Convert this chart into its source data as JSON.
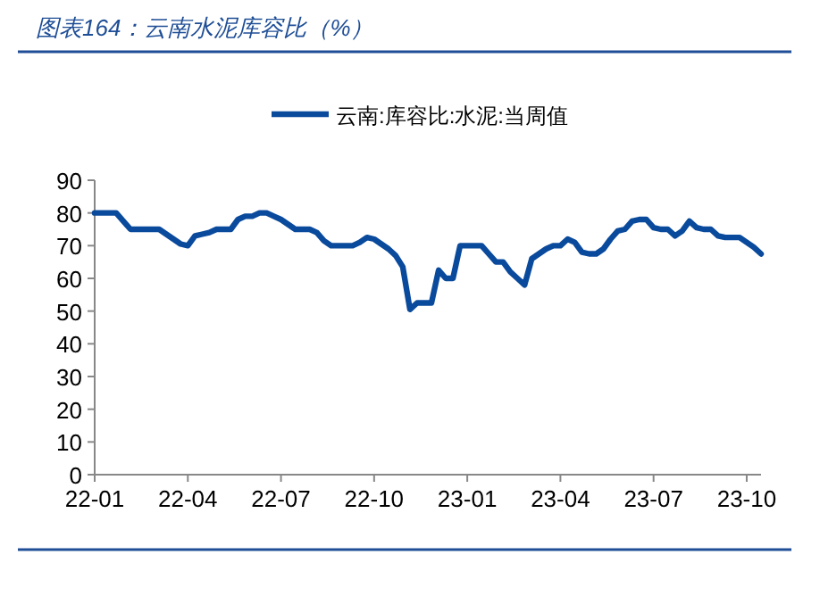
{
  "chart_data": {
    "type": "line",
    "title": "图表164：云南水泥库容比（%）",
    "categories": [
      "22-01",
      null,
      null,
      null,
      null,
      null,
      null,
      null,
      null,
      null,
      null,
      null,
      null,
      "22-04",
      null,
      null,
      null,
      null,
      null,
      null,
      null,
      null,
      null,
      null,
      null,
      null,
      "22-07",
      null,
      null,
      null,
      null,
      null,
      null,
      null,
      null,
      null,
      null,
      null,
      null,
      "22-10",
      null,
      null,
      null,
      null,
      null,
      null,
      null,
      null,
      null,
      null,
      null,
      null,
      "23-01",
      null,
      null,
      null,
      null,
      null,
      null,
      null,
      null,
      null,
      null,
      null,
      null,
      "23-04",
      null,
      null,
      null,
      null,
      null,
      null,
      null,
      null,
      null,
      null,
      null,
      null,
      "23-07",
      null,
      null,
      null,
      null,
      null,
      null,
      null,
      null,
      null,
      null,
      null,
      null,
      "23-10",
      null,
      null
    ],
    "series": [
      {
        "name": "云南:库容比:水泥:当周值",
        "color": "#0a4a9c",
        "values": [
          80,
          80,
          80,
          80,
          77.5,
          75,
          75,
          75,
          75,
          75,
          73.5,
          72,
          70.5,
          70,
          73,
          73.5,
          74,
          75,
          75,
          75,
          78,
          79,
          79,
          80,
          80,
          79,
          78,
          76.5,
          75,
          75,
          75,
          74,
          71.5,
          70,
          70,
          70,
          70,
          71,
          72.5,
          72,
          70.5,
          69,
          67,
          63.5,
          50.5,
          52.5,
          52.5,
          52.5,
          62.5,
          60,
          60,
          70,
          70,
          70,
          70,
          67.5,
          65,
          65,
          62,
          60,
          58,
          66,
          67.5,
          69,
          70,
          70,
          72,
          71,
          68,
          67.5,
          67.5,
          69,
          72,
          74.5,
          75,
          77.5,
          78,
          78,
          75.5,
          75,
          75,
          73,
          74.5,
          77.5,
          75.5,
          75,
          75,
          73,
          72.5,
          72.5,
          72.5,
          71,
          69.5,
          67.5
        ]
      }
    ],
    "ylim": [
      0,
      90
    ],
    "yticks": [
      0,
      10,
      20,
      30,
      40,
      50,
      60,
      70,
      80,
      90
    ],
    "grid": false,
    "legend": "top",
    "marker": "none",
    "line_style": "solid"
  }
}
